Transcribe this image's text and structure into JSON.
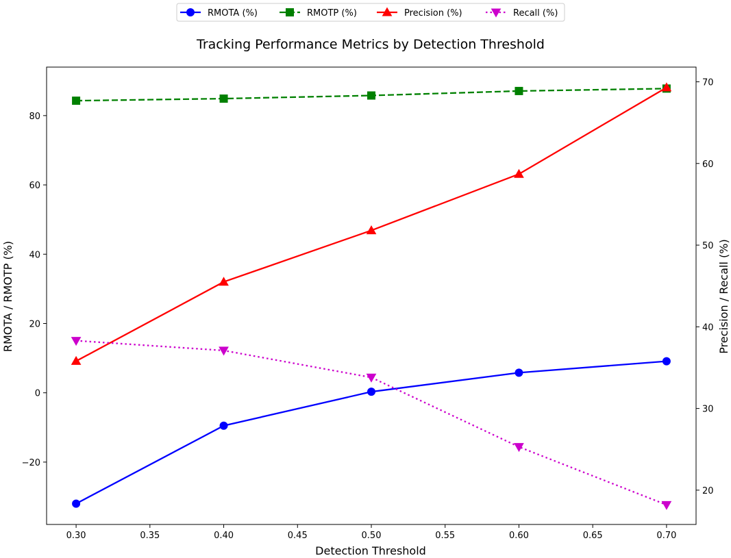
{
  "chart_data": {
    "type": "line",
    "title": "Tracking Performance Metrics by Detection Threshold",
    "xlabel": "Detection Threshold",
    "ylabel_left": "RMOTA / RMOTP (%)",
    "ylabel_right": "Precision / Recall (%)",
    "x": [
      0.3,
      0.4,
      0.5,
      0.6,
      0.7
    ],
    "xlim": [
      0.28,
      0.72
    ],
    "ylim_left": [
      -38,
      94
    ],
    "ylim_right": [
      15.8,
      71.8
    ],
    "xticks": [
      "0.30",
      "0.35",
      "0.40",
      "0.45",
      "0.50",
      "0.55",
      "0.60",
      "0.65",
      "0.70"
    ],
    "yticks_left": [
      "−20",
      "0",
      "20",
      "40",
      "60",
      "80"
    ],
    "yticks_right": [
      "20",
      "30",
      "40",
      "50",
      "60",
      "70"
    ],
    "grid": false,
    "legend_position": "top-center",
    "series": [
      {
        "name": "RMOTA (%)",
        "axis": "left",
        "color": "#0000ff",
        "marker": "circle",
        "linestyle": "solid",
        "values": [
          -32.0,
          -9.5,
          0.3,
          5.8,
          9.1
        ]
      },
      {
        "name": "RMOTP (%)",
        "axis": "left",
        "color": "#008000",
        "marker": "square",
        "linestyle": "dashed",
        "values": [
          84.3,
          84.9,
          85.8,
          87.1,
          87.8
        ]
      },
      {
        "name": "Precision (%)",
        "axis": "right",
        "color": "#ff0000",
        "marker": "triangle-up",
        "linestyle": "solid",
        "values": [
          35.8,
          45.5,
          51.8,
          58.7,
          69.3
        ]
      },
      {
        "name": "Recall (%)",
        "axis": "right",
        "color": "#cc00cc",
        "marker": "triangle-down",
        "linestyle": "dotted",
        "values": [
          38.3,
          37.1,
          33.8,
          25.3,
          18.2
        ]
      }
    ]
  }
}
